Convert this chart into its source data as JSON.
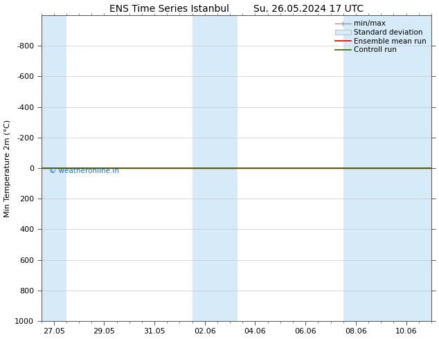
{
  "title": "ENS Time Series Istanbul        Su. 26.05.2024 17 UTC",
  "ylabel": "Min Temperature 2m (°C)",
  "yticks": [
    -800,
    -600,
    -400,
    -200,
    0,
    200,
    400,
    600,
    800,
    1000
  ],
  "xtick_labels": [
    "27.05",
    "29.05",
    "31.05",
    "02.06",
    "04.06",
    "06.06",
    "08.06",
    "10.06"
  ],
  "bg_color": "#ffffff",
  "plot_bg_color": "#ffffff",
  "shade_color": "#d6eaf8",
  "grid_color": "#c8c8c8",
  "green_line_color": "#336600",
  "red_line_color": "#cc0000",
  "watermark_text": "© weatheronline.in",
  "watermark_color": "#1a6ecc",
  "font_size": 8,
  "title_font_size": 10,
  "legend_fontsize": 7.5
}
